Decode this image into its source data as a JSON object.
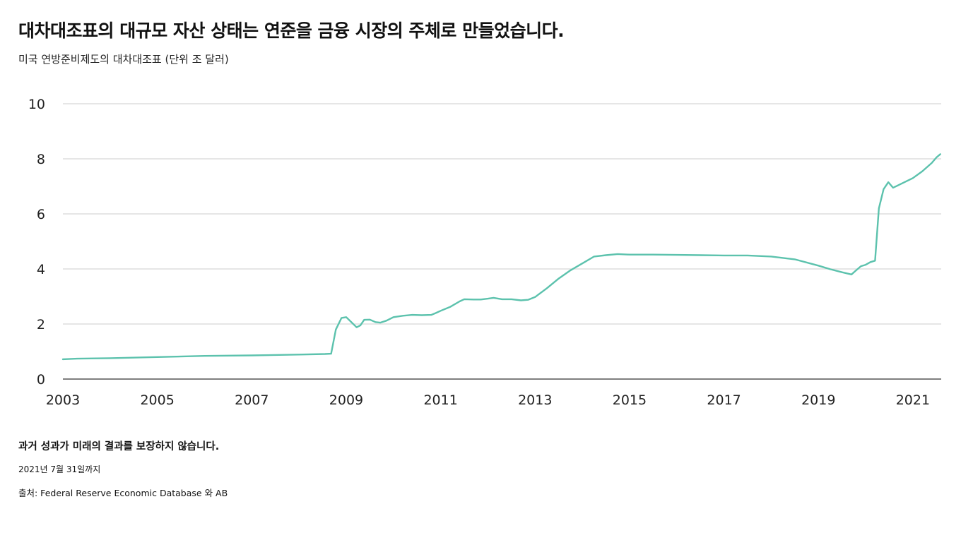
{
  "title": "대차대조표의 대규모 자산 상태는 연준을 금융 시장의 주체로 만들었습니다.",
  "subtitle": "미국 연방준비제도의 대차대조표 (단위 조 달러)",
  "footer": {
    "disclaimer": "과거 성과가 미래의 결과를 보장하지 않습니다.",
    "as_of": "2021년 7월 31일까지",
    "source": "출처: Federal Reserve Economic Database 와 AB"
  },
  "colors": {
    "line": "#5cc2ad",
    "grid": "#d6d6d6",
    "axis": "#555555"
  },
  "chart_data": {
    "type": "line",
    "xlabel": "",
    "ylabel": "",
    "xlim": [
      2003.0,
      2021.6
    ],
    "ylim": [
      0,
      10
    ],
    "x_ticks": [
      "2003",
      "2005",
      "2007",
      "2009",
      "2011",
      "2013",
      "2015",
      "2017",
      "2019",
      "2021"
    ],
    "y_ticks": [
      "0",
      "2",
      "4",
      "6",
      "8",
      "10"
    ],
    "grid": true,
    "series": [
      {
        "x": [
          2003.0,
          2003.3,
          2004.0,
          2005.0,
          2006.0,
          2007.0,
          2008.0,
          2008.55,
          2008.68,
          2008.78,
          2008.9,
          2009.0,
          2009.12,
          2009.22,
          2009.3,
          2009.38,
          2009.5,
          2009.62,
          2009.72,
          2009.85,
          2010.0,
          2010.2,
          2010.4,
          2010.6,
          2010.8,
          2010.9,
          2011.0,
          2011.2,
          2011.4,
          2011.5,
          2011.7,
          2011.85,
          2012.0,
          2012.12,
          2012.3,
          2012.5,
          2012.7,
          2012.85,
          2013.0,
          2013.25,
          2013.5,
          2013.75,
          2014.0,
          2014.25,
          2014.5,
          2014.75,
          2015.0,
          2015.5,
          2016.0,
          2016.5,
          2017.0,
          2017.5,
          2018.0,
          2018.5,
          2019.0,
          2019.25,
          2019.5,
          2019.7,
          2019.8,
          2019.9,
          2020.0,
          2020.1,
          2020.2,
          2020.28,
          2020.38,
          2020.48,
          2020.58,
          2020.7,
          2021.0,
          2021.2,
          2021.4,
          2021.5,
          2021.58
        ],
        "values": [
          0.72,
          0.74,
          0.76,
          0.8,
          0.84,
          0.86,
          0.89,
          0.91,
          0.92,
          1.8,
          2.22,
          2.25,
          2.05,
          1.88,
          1.95,
          2.15,
          2.16,
          2.07,
          2.05,
          2.12,
          2.25,
          2.3,
          2.33,
          2.32,
          2.33,
          2.4,
          2.48,
          2.62,
          2.82,
          2.9,
          2.89,
          2.89,
          2.92,
          2.95,
          2.9,
          2.9,
          2.86,
          2.88,
          2.98,
          3.3,
          3.65,
          3.95,
          4.2,
          4.45,
          4.5,
          4.54,
          4.52,
          4.52,
          4.51,
          4.5,
          4.49,
          4.49,
          4.45,
          4.35,
          4.12,
          3.99,
          3.88,
          3.8,
          3.95,
          4.1,
          4.15,
          4.25,
          4.3,
          6.2,
          6.9,
          7.15,
          6.95,
          7.05,
          7.3,
          7.55,
          7.85,
          8.05,
          8.17
        ]
      }
    ]
  }
}
